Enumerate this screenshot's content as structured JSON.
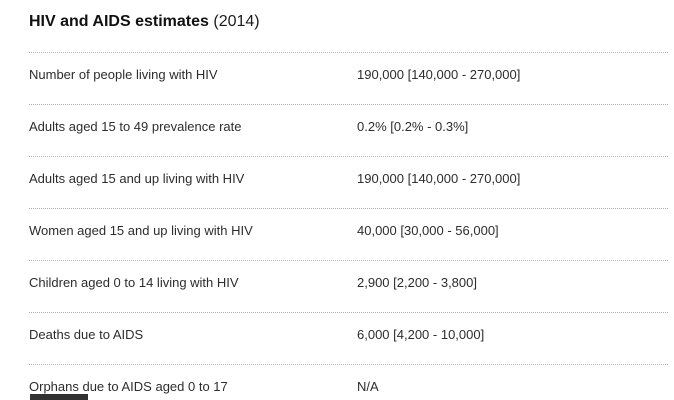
{
  "header": {
    "title": "HIV and AIDS estimates",
    "year": "(2014)"
  },
  "table": {
    "rows": [
      {
        "label": "Number of people living with HIV",
        "value": "190,000 [140,000 - 270,000]"
      },
      {
        "label": "Adults aged 15 to 49 prevalence rate",
        "value": "0.2% [0.2% - 0.3%]"
      },
      {
        "label": "Adults aged 15 and up living with HIV",
        "value": "190,000 [140,000 - 270,000]"
      },
      {
        "label": "Women aged 15 and up living with HIV",
        "value": "40,000 [30,000 - 56,000]"
      },
      {
        "label": "Children aged 0 to 14 living with HIV",
        "value": "2,900 [2,200 - 3,800]"
      },
      {
        "label": "Deaths due to AIDS",
        "value": "6,000 [4,200 - 10,000]"
      },
      {
        "label": "Orphans due to AIDS aged 0 to 17",
        "value": "N/A"
      }
    ]
  },
  "colors": {
    "background": "#ffffff",
    "title_text": "#111111",
    "row_text": "#2d2d2d",
    "separator": "#b3b3b3",
    "clipped_bar": "#333333"
  }
}
